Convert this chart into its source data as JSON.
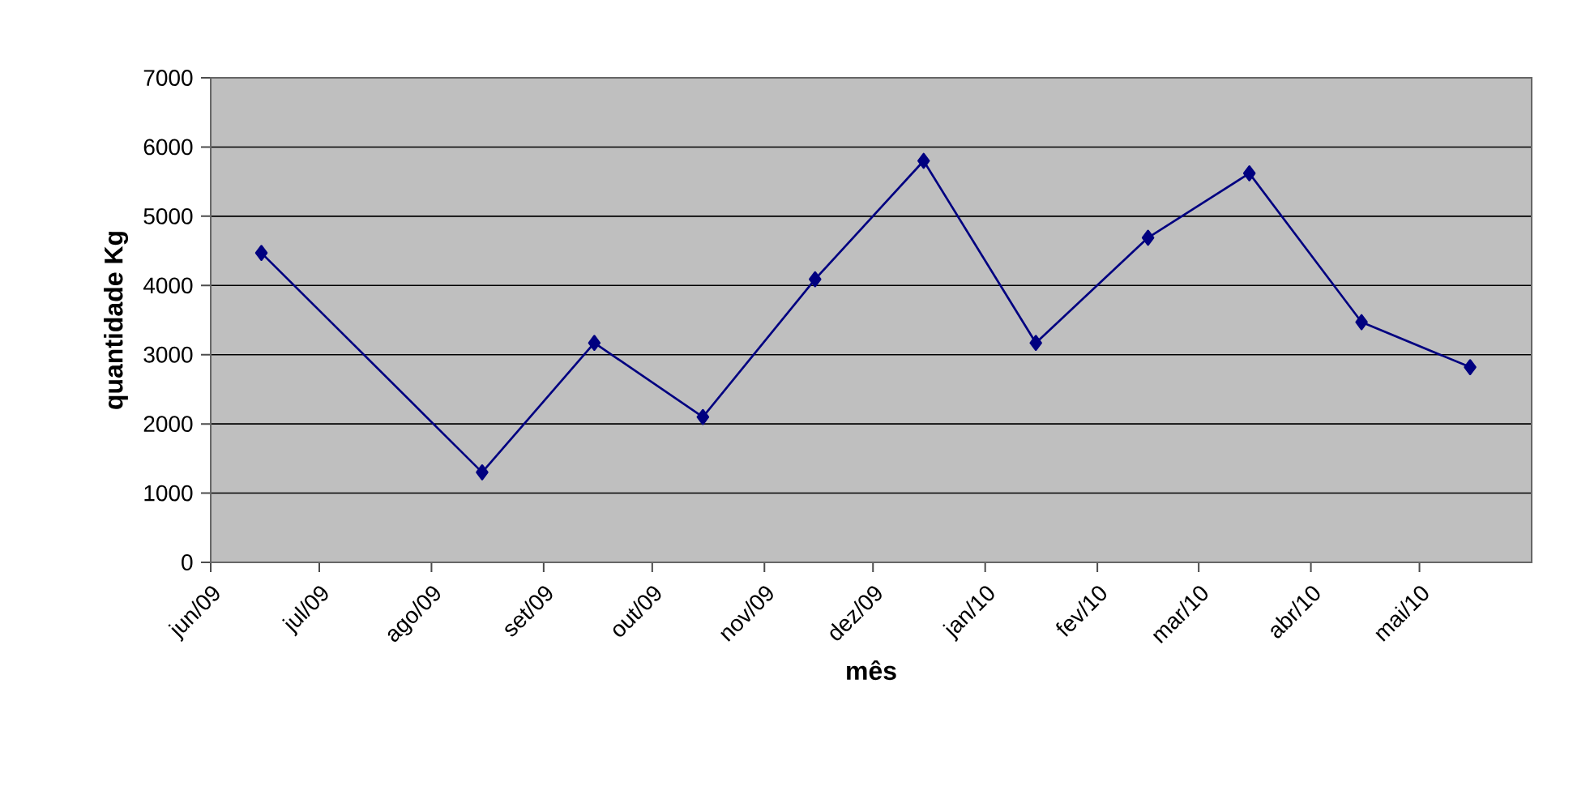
{
  "chart_data": {
    "type": "line",
    "xlabel": "mês",
    "ylabel": "quantidade Kg",
    "x": [
      "2009-06-15",
      "2009-08-15",
      "2009-09-15",
      "2009-10-15",
      "2009-11-15",
      "2009-12-15",
      "2010-01-15",
      "2010-02-15",
      "2010-03-15",
      "2010-04-15",
      "2010-05-15"
    ],
    "series": [
      {
        "color": "#000080",
        "values": [
          4470,
          1300,
          3170,
          2100,
          4090,
          5800,
          3170,
          4690,
          5620,
          3470,
          2820
        ]
      }
    ],
    "xlim": [
      "2009-06-01",
      "2010-06-01"
    ],
    "xticks": [
      {
        "value": "2009-06-01",
        "label": "jun/09"
      },
      {
        "value": "2009-07-01",
        "label": "jul/09"
      },
      {
        "value": "2009-08-01",
        "label": "ago/09"
      },
      {
        "value": "2009-09-01",
        "label": "set/09"
      },
      {
        "value": "2009-10-01",
        "label": "out/09"
      },
      {
        "value": "2009-11-01",
        "label": "nov/09"
      },
      {
        "value": "2009-12-01",
        "label": "dez/09"
      },
      {
        "value": "2010-01-01",
        "label": "jan/10"
      },
      {
        "value": "2010-02-01",
        "label": "fev/10"
      },
      {
        "value": "2010-03-01",
        "label": "mar/10"
      },
      {
        "value": "2010-04-01",
        "label": "abr/10"
      },
      {
        "value": "2010-05-01",
        "label": "mai/10"
      }
    ],
    "ylim": [
      0,
      7000
    ],
    "yticks": [
      0,
      1000,
      2000,
      3000,
      4000,
      5000,
      6000,
      7000
    ],
    "grid": "y",
    "marker": "diamond",
    "line_style": "solid"
  }
}
